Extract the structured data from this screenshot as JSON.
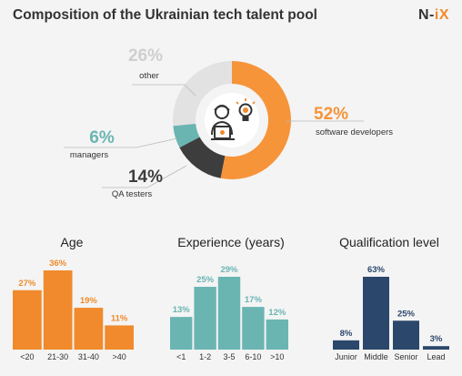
{
  "header": {
    "title": "Composition of the Ukrainian tech talent pool",
    "logo_left": "N-",
    "logo_right": "iX"
  },
  "colors": {
    "orange": "#f6943a",
    "teal": "#6ab5b2",
    "navy": "#2b476b",
    "dark": "#3d3d3d",
    "grey": "#e2e2e2",
    "accent": "#f08a2c"
  },
  "chart_data": [
    {
      "type": "pie",
      "title": "",
      "slices": [
        {
          "label": "software developers",
          "value_text": "52%",
          "value": 52,
          "color": "#f6943a"
        },
        {
          "label": "QA testers",
          "value_text": "14%",
          "value": 14,
          "color": "#3d3d3d"
        },
        {
          "label": "managers",
          "value_text": "6%",
          "value": 6,
          "color": "#6ab5b2"
        },
        {
          "label": "other",
          "value_text": "26%",
          "value": 26,
          "color": "#e2e2e2"
        }
      ]
    },
    {
      "type": "bar",
      "title": "Age",
      "color": "#f08a2c",
      "categories": [
        "<20",
        "21-30",
        "31-40",
        ">40"
      ],
      "values": [
        27,
        36,
        19,
        11
      ],
      "value_labels": [
        "27%",
        "36%",
        "19%",
        "11%"
      ]
    },
    {
      "type": "bar",
      "title": "Experience (years)",
      "color": "#6ab5b2",
      "categories": [
        "<1",
        "1-2",
        "3-5",
        "6-10",
        ">10"
      ],
      "values": [
        13,
        25,
        29,
        17,
        12
      ],
      "value_labels": [
        "13%",
        "25%",
        "29%",
        "17%",
        "12%"
      ]
    },
    {
      "type": "bar",
      "title": "Qualification level",
      "color": "#2b476b",
      "categories": [
        "Junior",
        "Middle",
        "Senior",
        "Lead"
      ],
      "values": [
        8,
        63,
        25,
        3
      ],
      "value_labels": [
        "8%",
        "63%",
        "25%",
        "3%"
      ]
    }
  ]
}
